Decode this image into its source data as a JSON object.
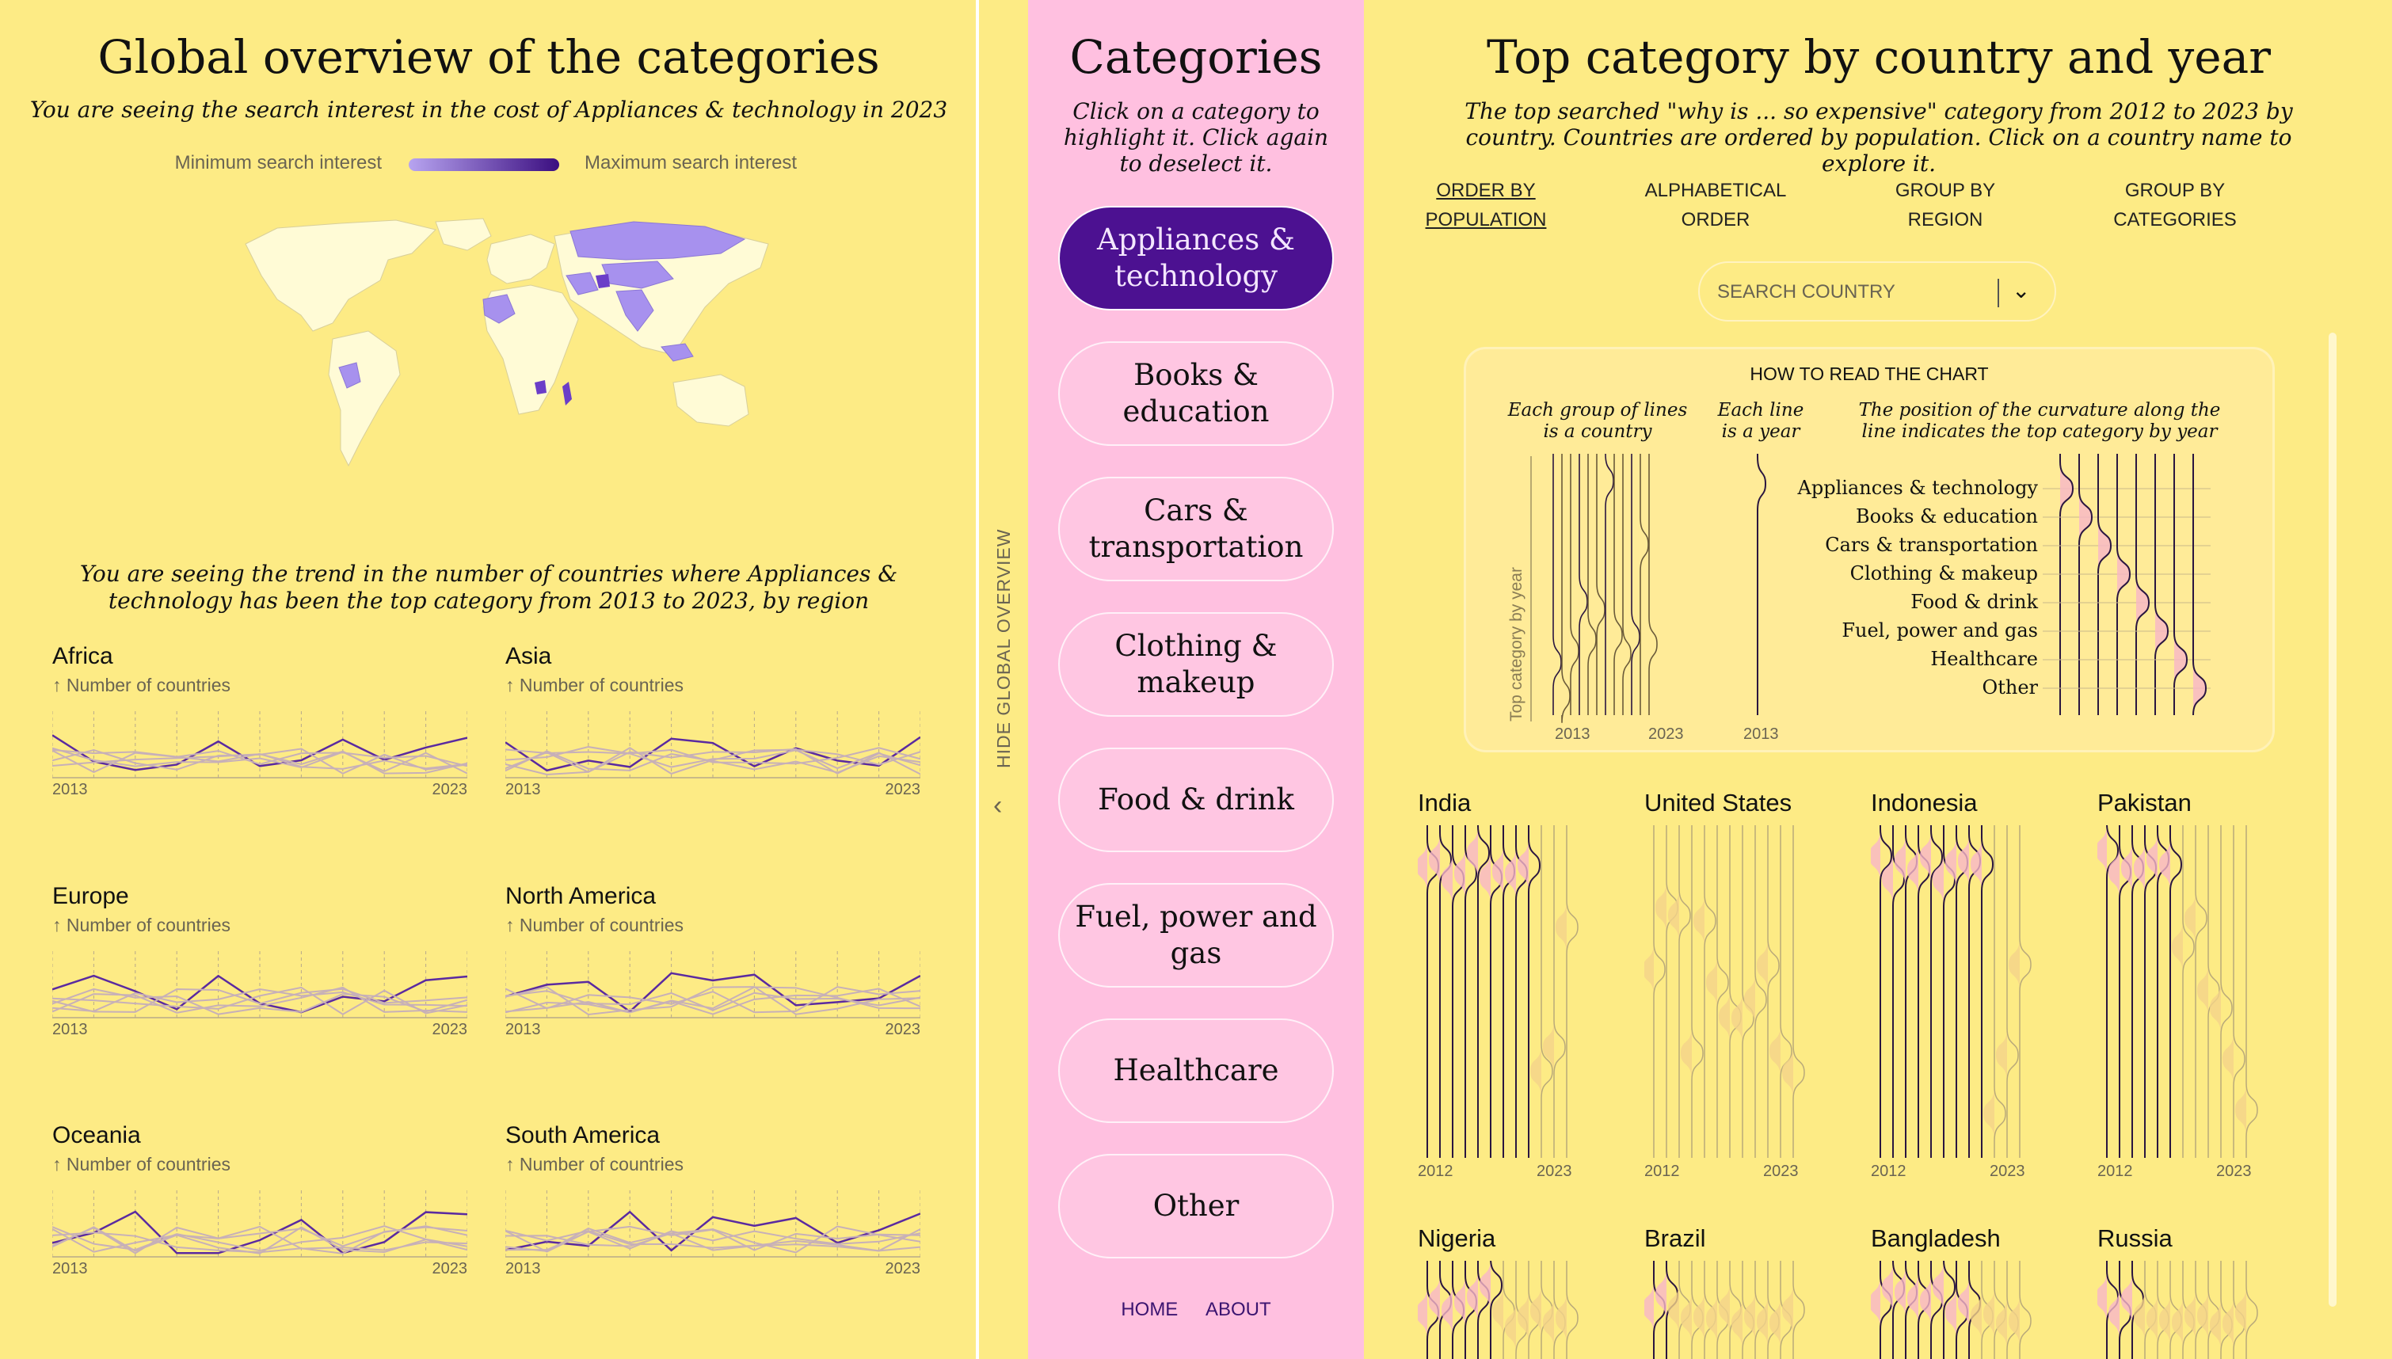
{
  "left": {
    "title": "Global overview of the categories",
    "subtitle": "You are seeing the search interest in the cost of Appliances & technology in 2023",
    "legend": {
      "min": "Minimum search interest",
      "max": "Maximum search interest",
      "color_low": "#b7a4f0",
      "color_high": "#3b0e80"
    },
    "trend_title": "You are seeing the trend in the number of countries where Appliances & technology has been the top category from 2013 to 2023, by region",
    "y_unit": "↑ Number of countries",
    "year_start": "2013",
    "year_end": "2023",
    "regions": [
      {
        "name": "Africa"
      },
      {
        "name": "Asia"
      },
      {
        "name": "Europe"
      },
      {
        "name": "North America"
      },
      {
        "name": "Oceania"
      },
      {
        "name": "South America"
      }
    ]
  },
  "toggle": {
    "label": "HIDE GLOBAL OVERVIEW",
    "icon": "chevron-left-icon"
  },
  "categories": {
    "title": "Categories",
    "subtitle": "Click on a category to highlight it. Click again to deselect it.",
    "items": [
      {
        "label": "Appliances & technology",
        "active": true
      },
      {
        "label": "Books & education",
        "active": false
      },
      {
        "label": "Cars & transportation",
        "active": false
      },
      {
        "label": "Clothing & makeup",
        "active": false
      },
      {
        "label": "Food & drink",
        "active": false
      },
      {
        "label": "Fuel, power and gas",
        "active": false
      },
      {
        "label": "Healthcare",
        "active": false
      },
      {
        "label": "Other",
        "active": false
      }
    ],
    "links": {
      "home": "HOME",
      "about": "ABOUT"
    }
  },
  "right": {
    "title": "Top category by country and year",
    "subtitle": "The top searched \"why is ... so expensive\" category from 2012 to 2023 by country. Countries are ordered by population. Click on a country name to explore it.",
    "sort_options": [
      {
        "line1": "ORDER BY",
        "line2": "POPULATION",
        "active": true
      },
      {
        "line1": "ALPHABETICAL",
        "line2": "ORDER",
        "active": false
      },
      {
        "line1": "GROUP BY",
        "line2": "REGION",
        "active": false
      },
      {
        "line1": "GROUP BY",
        "line2": "CATEGORIES",
        "active": false
      }
    ],
    "search_placeholder": "SEARCH COUNTRY",
    "howto": {
      "title": "HOW TO READ THE CHART",
      "cap_group": "Each group of lines is a country",
      "cap_line": "Each line is a year",
      "cap_position": "The position of the curvature along the line indicates the top category by year",
      "axis_label": "Top category by year",
      "year_start": "2013",
      "year_end": "2023",
      "category_labels": [
        "Appliances & technology",
        "Books & education",
        "Cars & transportation",
        "Clothing & makeup",
        "Food & drink",
        "Fuel, power and gas",
        "Healthcare",
        "Other"
      ]
    },
    "year_start": "2012",
    "year_end": "2023",
    "countries": [
      {
        "name": "India"
      },
      {
        "name": "United States"
      },
      {
        "name": "Indonesia"
      },
      {
        "name": "Pakistan"
      },
      {
        "name": "Nigeria"
      },
      {
        "name": "Brazil"
      },
      {
        "name": "Bangladesh"
      },
      {
        "name": "Russia"
      }
    ]
  },
  "colors": {
    "background": "#fdeb85",
    "panel_pink": "#ffc0e0",
    "accent_purple": "#4c1191"
  }
}
